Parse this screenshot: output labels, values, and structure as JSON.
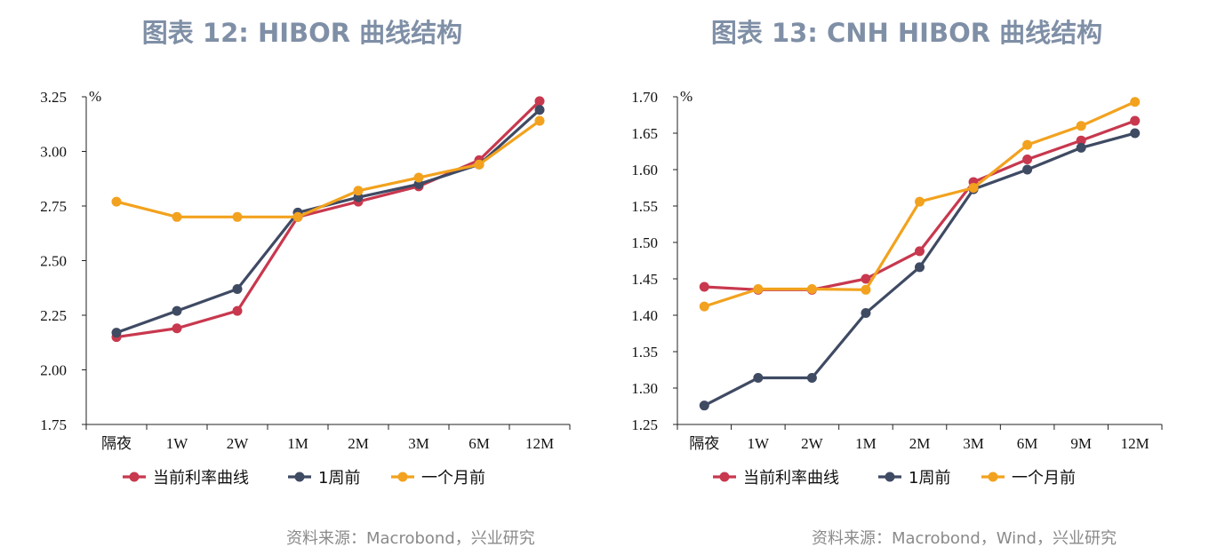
{
  "colors": {
    "current": "#c8384e",
    "week": "#3f4a63",
    "month": "#f2a21e",
    "title": "#7f8fa6",
    "source": "#8a8a8a"
  },
  "left": {
    "title": "图表 12: HIBOR 曲线结构",
    "source": "资料来源：Macrobond，兴业研究",
    "chart_data": {
      "type": "line",
      "unit": "%",
      "categories": [
        "隔夜",
        "1W",
        "2W",
        "1M",
        "2M",
        "3M",
        "6M",
        "12M"
      ],
      "ylim": [
        1.75,
        3.25
      ],
      "yticks": [
        "1.75",
        "2.00",
        "2.25",
        "2.50",
        "2.75",
        "3.00",
        "3.25"
      ],
      "grid": false,
      "legend": "bottom",
      "series": [
        {
          "name": "当前利率曲线",
          "values": [
            2.15,
            2.19,
            2.27,
            2.7,
            2.77,
            2.84,
            2.96,
            3.23
          ]
        },
        {
          "name": "1周前",
          "values": [
            2.17,
            2.27,
            2.37,
            2.72,
            2.79,
            2.85,
            2.94,
            3.19
          ]
        },
        {
          "name": "一个月前",
          "values": [
            2.77,
            2.7,
            2.7,
            2.7,
            2.82,
            2.88,
            2.94,
            3.14
          ]
        }
      ]
    }
  },
  "right": {
    "title": "图表 13: CNH HIBOR 曲线结构",
    "source": "资料来源：Macrobond，Wind，兴业研究",
    "chart_data": {
      "type": "line",
      "unit": "%",
      "categories": [
        "隔夜",
        "1W",
        "2W",
        "1M",
        "2M",
        "3M",
        "6M",
        "9M",
        "12M"
      ],
      "ylim": [
        1.25,
        1.7
      ],
      "yticks": [
        "1.25",
        "1.30",
        "1.35",
        "1.40",
        "1.45",
        "1.50",
        "1.55",
        "1.60",
        "1.65",
        "1.70"
      ],
      "grid": false,
      "legend": "bottom",
      "series": [
        {
          "name": "当前利率曲线",
          "values": [
            1.439,
            1.435,
            1.435,
            1.45,
            1.488,
            1.583,
            1.614,
            1.64,
            1.667
          ]
        },
        {
          "name": "1周前",
          "values": [
            1.276,
            1.314,
            1.314,
            1.403,
            1.466,
            1.573,
            1.6,
            1.63,
            1.65
          ]
        },
        {
          "name": "一个月前",
          "values": [
            1.412,
            1.436,
            1.436,
            1.435,
            1.556,
            1.575,
            1.634,
            1.66,
            1.693
          ]
        }
      ]
    }
  }
}
